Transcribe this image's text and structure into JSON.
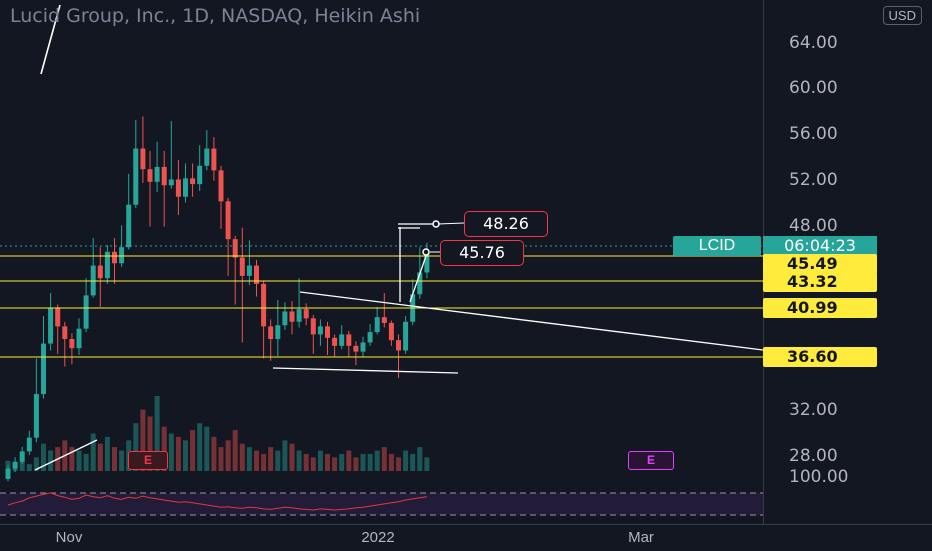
{
  "title": "Lucid Group, Inc., 1D, NASDAQ, Heikin Ashi",
  "currency": "USD",
  "price_ticks": [
    "64.00",
    "60.00",
    "56.00",
    "52.00",
    "48.00",
    "32.00",
    "28.00"
  ],
  "level_labels": [
    "45.49",
    "43.32",
    "40.99",
    "36.60"
  ],
  "symbol": "LCID",
  "countdown": "06:04:23",
  "callouts": [
    "48.26",
    "45.76"
  ],
  "earnings_label": "E",
  "time_labels": [
    "Nov",
    "2022",
    "Mar"
  ],
  "rsi_tick": "100.00",
  "colors": {
    "up": "#26a69a",
    "down": "#ef5350",
    "level": "#ffeb3b",
    "background": "#131722"
  },
  "chart_data": {
    "type": "candlestick",
    "chart_style": "Heikin Ashi",
    "interval": "1D",
    "ylim": [
      26,
      67
    ],
    "horizontal_levels": [
      45.49,
      43.32,
      40.99,
      36.6
    ],
    "candles": [
      {
        "o": 26.0,
        "c": 26.9,
        "h": 27.2,
        "l": 25.8
      },
      {
        "o": 26.9,
        "c": 27.5,
        "h": 27.9,
        "l": 26.6
      },
      {
        "o": 27.5,
        "c": 28.4,
        "h": 28.8,
        "l": 27.3
      },
      {
        "o": 28.4,
        "c": 29.6,
        "h": 30.2,
        "l": 28.1
      },
      {
        "o": 29.6,
        "c": 33.4,
        "h": 36.5,
        "l": 29.2
      },
      {
        "o": 33.4,
        "c": 37.8,
        "h": 40.2,
        "l": 33.0
      },
      {
        "o": 37.8,
        "c": 40.9,
        "h": 42.2,
        "l": 37.2
      },
      {
        "o": 40.9,
        "c": 39.3,
        "h": 41.2,
        "l": 36.9
      },
      {
        "o": 39.3,
        "c": 38.2,
        "h": 39.7,
        "l": 35.8
      },
      {
        "o": 38.2,
        "c": 37.4,
        "h": 38.7,
        "l": 36.0
      },
      {
        "o": 37.4,
        "c": 39.1,
        "h": 40.0,
        "l": 36.8
      },
      {
        "o": 39.1,
        "c": 42.0,
        "h": 43.5,
        "l": 38.8
      },
      {
        "o": 42.0,
        "c": 44.6,
        "h": 47.0,
        "l": 41.8
      },
      {
        "o": 44.6,
        "c": 43.5,
        "h": 46.2,
        "l": 41.0
      },
      {
        "o": 43.5,
        "c": 45.8,
        "h": 46.4,
        "l": 43.0
      },
      {
        "o": 45.8,
        "c": 44.8,
        "h": 47.0,
        "l": 43.0
      },
      {
        "o": 44.8,
        "c": 46.2,
        "h": 48.1,
        "l": 44.5
      },
      {
        "o": 46.2,
        "c": 49.9,
        "h": 52.6,
        "l": 46.0
      },
      {
        "o": 49.9,
        "c": 54.8,
        "h": 57.3,
        "l": 49.6
      },
      {
        "o": 54.8,
        "c": 53.0,
        "h": 57.6,
        "l": 51.8
      },
      {
        "o": 53.0,
        "c": 51.9,
        "h": 54.6,
        "l": 48.0
      },
      {
        "o": 51.9,
        "c": 53.2,
        "h": 55.4,
        "l": 51.0
      },
      {
        "o": 53.2,
        "c": 51.6,
        "h": 54.6,
        "l": 48.0
      },
      {
        "o": 51.6,
        "c": 52.1,
        "h": 57.2,
        "l": 51.3
      },
      {
        "o": 52.1,
        "c": 50.6,
        "h": 53.8,
        "l": 49.0
      },
      {
        "o": 50.6,
        "c": 52.2,
        "h": 53.5,
        "l": 50.1
      },
      {
        "o": 52.2,
        "c": 51.7,
        "h": 53.5,
        "l": 50.6
      },
      {
        "o": 51.7,
        "c": 53.3,
        "h": 55.1,
        "l": 51.1
      },
      {
        "o": 53.3,
        "c": 54.8,
        "h": 56.4,
        "l": 52.9
      },
      {
        "o": 54.8,
        "c": 52.9,
        "h": 55.8,
        "l": 52.0
      },
      {
        "o": 52.9,
        "c": 50.2,
        "h": 53.3,
        "l": 47.8
      },
      {
        "o": 50.2,
        "c": 46.9,
        "h": 50.5,
        "l": 43.7
      },
      {
        "o": 46.9,
        "c": 45.3,
        "h": 47.2,
        "l": 41.2
      },
      {
        "o": 45.3,
        "c": 43.7,
        "h": 47.9,
        "l": 37.9
      },
      {
        "o": 43.7,
        "c": 44.6,
        "h": 46.8,
        "l": 42.9
      },
      {
        "o": 44.6,
        "c": 43.0,
        "h": 45.1,
        "l": 41.9
      },
      {
        "o": 43.0,
        "c": 39.3,
        "h": 43.3,
        "l": 36.5
      },
      {
        "o": 39.3,
        "c": 38.2,
        "h": 39.9,
        "l": 36.3
      },
      {
        "o": 38.2,
        "c": 39.4,
        "h": 41.6,
        "l": 36.7
      },
      {
        "o": 39.4,
        "c": 40.6,
        "h": 41.4,
        "l": 39.0
      },
      {
        "o": 40.6,
        "c": 39.7,
        "h": 41.5,
        "l": 38.6
      },
      {
        "o": 39.7,
        "c": 40.8,
        "h": 43.5,
        "l": 39.2
      },
      {
        "o": 40.8,
        "c": 40.0,
        "h": 41.3,
        "l": 39.4
      },
      {
        "o": 40.0,
        "c": 38.6,
        "h": 40.3,
        "l": 36.9
      },
      {
        "o": 38.6,
        "c": 39.3,
        "h": 39.9,
        "l": 37.6
      },
      {
        "o": 39.3,
        "c": 38.3,
        "h": 39.7,
        "l": 36.8
      },
      {
        "o": 38.3,
        "c": 37.6,
        "h": 38.6,
        "l": 36.6
      },
      {
        "o": 37.6,
        "c": 38.6,
        "h": 39.4,
        "l": 37.3
      },
      {
        "o": 38.6,
        "c": 37.6,
        "h": 38.9,
        "l": 36.6
      },
      {
        "o": 37.6,
        "c": 37.1,
        "h": 38.0,
        "l": 35.9
      },
      {
        "o": 37.1,
        "c": 37.9,
        "h": 38.4,
        "l": 36.6
      },
      {
        "o": 37.9,
        "c": 38.8,
        "h": 39.5,
        "l": 37.6
      },
      {
        "o": 38.8,
        "c": 40.1,
        "h": 41.0,
        "l": 38.6
      },
      {
        "o": 40.1,
        "c": 39.6,
        "h": 42.2,
        "l": 39.2
      },
      {
        "o": 39.6,
        "c": 38.1,
        "h": 39.8,
        "l": 37.6
      },
      {
        "o": 38.1,
        "c": 37.2,
        "h": 38.6,
        "l": 34.8
      },
      {
        "o": 37.2,
        "c": 39.7,
        "h": 40.2,
        "l": 36.9
      },
      {
        "o": 39.7,
        "c": 42.1,
        "h": 43.4,
        "l": 39.4
      },
      {
        "o": 42.1,
        "c": 44.0,
        "h": 46.2,
        "l": 41.7
      },
      {
        "o": 44.0,
        "c": 45.8,
        "h": 46.6,
        "l": 43.5
      }
    ],
    "volume": [
      3,
      2,
      3,
      2,
      4,
      8,
      6,
      7,
      9,
      7,
      6,
      5,
      11,
      8,
      10,
      7,
      6,
      9,
      14,
      18,
      16,
      22,
      13,
      11,
      10,
      9,
      12,
      14,
      13,
      10,
      7,
      9,
      12,
      8,
      7,
      6,
      5,
      7,
      6,
      9,
      8,
      6,
      5,
      4,
      6,
      5,
      4,
      5,
      6,
      4,
      5,
      5,
      6,
      7,
      5,
      4,
      6,
      5,
      7,
      4
    ],
    "rsi": [
      48,
      52,
      55,
      61,
      64,
      67,
      70,
      65,
      62,
      58,
      60,
      66,
      63,
      61,
      65,
      60,
      58,
      62,
      60,
      64,
      61,
      59,
      57,
      55,
      53,
      54,
      52,
      50,
      48,
      46,
      44,
      45,
      43,
      42,
      44,
      43,
      41,
      40,
      42,
      44,
      43,
      41,
      40,
      39,
      41,
      40,
      39,
      40,
      41,
      43,
      44,
      46,
      48,
      50,
      52,
      54,
      57,
      59,
      61,
      63
    ]
  }
}
